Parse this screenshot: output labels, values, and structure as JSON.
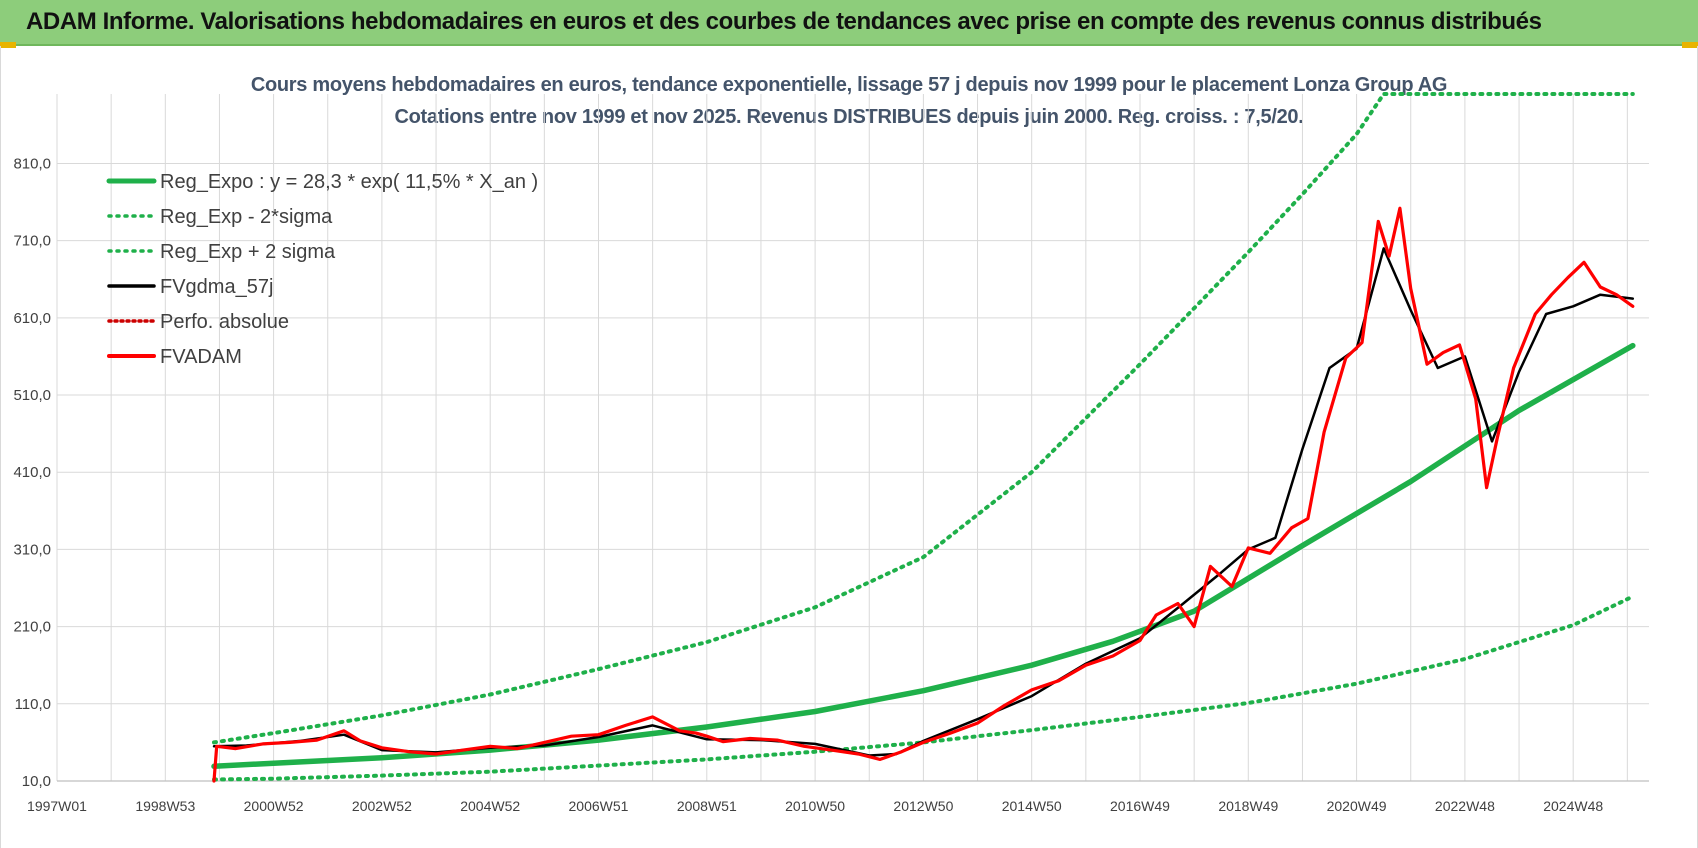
{
  "header": {
    "title": "ADAM Informe. Valorisations hebdomadaires en euros et des courbes de tendances avec prise en compte des revenus connus distribués"
  },
  "colors": {
    "banner": "#8dcd7b",
    "green": "#1fb04a",
    "red": "#ff0000",
    "black": "#000000",
    "grid": "#d9d9d9"
  },
  "chart_data": {
    "type": "line",
    "title": "Cours moyens hebdomadaires en euros, tendance exponentielle, lissage 57 j depuis nov 1999 pour le placement Lonza Group AG",
    "subtitle": "Cotations entre nov 1999 et nov 2025. Revenus DISTRIBUES depuis juin 2000. Reg. croiss. : 7,5/20.",
    "xlabel": "",
    "ylabel": "",
    "x_range": [
      1997.0,
      2026.4
    ],
    "ylim": [
      10,
      900
    ],
    "y_ticks": [
      "10,0",
      "110,0",
      "210,0",
      "310,0",
      "410,0",
      "510,0",
      "610,0",
      "710,0",
      "810,0"
    ],
    "y_tick_values": [
      10,
      110,
      210,
      310,
      410,
      510,
      610,
      710,
      810
    ],
    "x_ticks": [
      "1997W01",
      "1998W53",
      "2000W52",
      "2002W52",
      "2004W52",
      "2006W51",
      "2008W51",
      "2010W50",
      "2012W50",
      "2014W50",
      "2016W49",
      "2018W49",
      "2020W49",
      "2022W48",
      "2024W48"
    ],
    "x_tick_values": [
      1997.0,
      1999.0,
      2001.0,
      2003.0,
      2005.0,
      2007.0,
      2009.0,
      2011.0,
      2013.0,
      2015.0,
      2017.0,
      2019.0,
      2021.0,
      2023.0,
      2025.0
    ],
    "grid": true,
    "legend_position": "top-left",
    "series": [
      {
        "name": "Reg_Expo : y = 28,3 * exp( 11,5% *  X_an )",
        "key": "reg",
        "color": "#1fb04a",
        "style": "solid",
        "x": [
          1999.9,
          2001,
          2003,
          2005,
          2007,
          2009,
          2011,
          2013,
          2015,
          2016.5,
          2018,
          2020,
          2022,
          2024,
          2026.1
        ],
        "y": [
          29,
          33,
          40,
          50,
          63,
          80,
          100,
          127,
          160,
          191,
          230,
          315,
          398,
          490,
          574
        ]
      },
      {
        "name": "Reg_Exp - 2*sigma",
        "key": "lower",
        "color": "#1fb04a",
        "style": "dotted",
        "x": [
          1999.9,
          2001,
          2003,
          2005,
          2007,
          2009,
          2011,
          2013,
          2015,
          2017,
          2019,
          2021,
          2023,
          2025,
          2026.1
        ],
        "y": [
          12,
          13,
          17,
          22,
          30,
          38,
          48,
          60,
          76,
          93,
          111,
          136,
          168,
          212,
          249
        ]
      },
      {
        "name": "Reg_Exp + 2 sigma",
        "key": "upper",
        "color": "#1fb04a",
        "style": "dotted",
        "x": [
          1999.9,
          2001,
          2003,
          2005,
          2007,
          2009,
          2011,
          2013,
          2015,
          2017,
          2019,
          2020,
          2021,
          2021.5,
          2026.1
        ],
        "y": [
          60,
          72,
          95,
          122,
          155,
          190,
          235,
          300,
          410,
          550,
          695,
          770,
          848,
          900,
          900
        ]
      },
      {
        "name": "FVgdma_57j",
        "key": "smooth",
        "color": "#000000",
        "style": "solid",
        "x": [
          1999.9,
          2000.5,
          2001.5,
          2002.3,
          2003,
          2004,
          2005,
          2006,
          2007,
          2008,
          2009,
          2010,
          2011,
          2012,
          2012.5,
          2013,
          2014,
          2015,
          2016,
          2017,
          2017.8,
          2018.5,
          2019,
          2019.5,
          2020,
          2020.5,
          2021,
          2021.5,
          2022,
          2022.5,
          2023,
          2023.5,
          2024,
          2024.5,
          2025,
          2025.5,
          2026.1
        ],
        "y": [
          55,
          56,
          62,
          70,
          50,
          47,
          53,
          56,
          67,
          82,
          64,
          63,
          58,
          43,
          45,
          62,
          90,
          120,
          162,
          195,
          240,
          280,
          310,
          325,
          440,
          545,
          570,
          700,
          620,
          545,
          560,
          450,
          540,
          615,
          625,
          640,
          635
        ]
      },
      {
        "name": "Perfo. absolue",
        "key": "perfo",
        "color": "#cc0000",
        "style": "dotted",
        "x": [],
        "y": []
      },
      {
        "name": "FVADAM",
        "key": "fv",
        "color": "#ff0000",
        "style": "solid",
        "x": [
          1999.9,
          1999.95,
          2000.3,
          2000.8,
          2001.3,
          2001.8,
          2002.3,
          2002.6,
          2003,
          2003.5,
          2004,
          2004.5,
          2005,
          2005.5,
          2006,
          2006.5,
          2007,
          2007.5,
          2008,
          2008.5,
          2008.8,
          2009,
          2009.3,
          2009.8,
          2010.3,
          2010.8,
          2011.3,
          2011.8,
          2012.2,
          2012.6,
          2013,
          2013.5,
          2014,
          2014.5,
          2015,
          2015.5,
          2016,
          2016.5,
          2017,
          2017.3,
          2017.7,
          2018,
          2018.3,
          2018.7,
          2019,
          2019.4,
          2019.8,
          2020.1,
          2020.4,
          2020.8,
          2021.1,
          2021.4,
          2021.6,
          2021.8,
          2022,
          2022.3,
          2022.6,
          2022.9,
          2023.2,
          2023.4,
          2023.6,
          2023.9,
          2024.3,
          2024.6,
          2024.9,
          2025.2,
          2025.5,
          2025.8,
          2026.1
        ],
        "y": [
          10,
          55,
          52,
          58,
          60,
          63,
          75,
          62,
          53,
          48,
          45,
          50,
          55,
          52,
          60,
          68,
          70,
          82,
          93,
          75,
          72,
          68,
          61,
          65,
          63,
          55,
          50,
          45,
          38,
          48,
          60,
          72,
          85,
          108,
          128,
          140,
          160,
          172,
          192,
          225,
          240,
          210,
          288,
          262,
          312,
          305,
          338,
          350,
          462,
          558,
          578,
          735,
          690,
          752,
          648,
          550,
          565,
          575,
          505,
          390,
          455,
          545,
          615,
          640,
          662,
          682,
          650,
          640,
          625
        ]
      }
    ]
  }
}
